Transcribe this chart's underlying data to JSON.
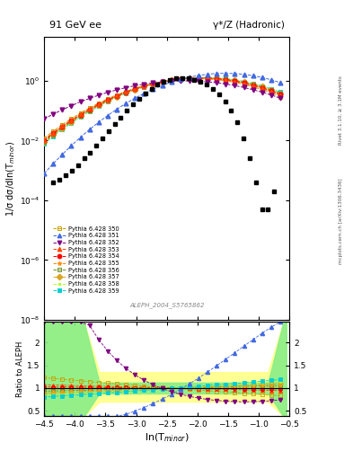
{
  "title_left": "91 GeV ee",
  "title_right": "γ*/Z (Hadronic)",
  "ylabel_main": "1/σ dσ/dln(T$_{minor}$)",
  "ylabel_ratio": "Ratio to ALEPH",
  "xlabel": "ln(T$_{minor}$)",
  "right_label_top": "Rivet 3.1.10, ≥ 3.1M events",
  "right_label_bottom": "mcplots.cern.ch [arXiv:1306.3436]",
  "ref_label": "ALEPH_2004_S5765862",
  "xlim": [
    -4.5,
    -0.5
  ],
  "ylim_main": [
    1e-08,
    30
  ],
  "ylim_ratio": [
    0.38,
    2.45
  ],
  "legend_entries": [
    "Pythia 6.428 350",
    "Pythia 6.428 351",
    "Pythia 6.428 352",
    "Pythia 6.428 353",
    "Pythia 6.428 354",
    "Pythia 6.428 355",
    "Pythia 6.428 356",
    "Pythia 6.428 357",
    "Pythia 6.428 358",
    "Pythia 6.428 359"
  ],
  "mc_colors": [
    "#c8a000",
    "#4169e1",
    "#800080",
    "#ff4500",
    "#ff0000",
    "#ff8c00",
    "#6b8e23",
    "#daa520",
    "#adff2f",
    "#00ced1"
  ],
  "mc_markers": [
    "s",
    "^",
    "v",
    "^",
    "o",
    "*",
    "s",
    "D",
    ".",
    "s"
  ],
  "ref_x": [
    -4.35,
    -4.25,
    -4.15,
    -4.05,
    -3.95,
    -3.85,
    -3.75,
    -3.65,
    -3.55,
    -3.45,
    -3.35,
    -3.25,
    -3.15,
    -3.05,
    -2.95,
    -2.85,
    -2.75,
    -2.65,
    -2.55,
    -2.45,
    -2.35,
    -2.25,
    -2.15,
    -2.05,
    -1.95,
    -1.85,
    -1.75,
    -1.65,
    -1.55,
    -1.45,
    -1.35,
    -1.25,
    -1.15,
    -1.05,
    -0.95,
    -0.85,
    -0.75
  ],
  "ref_y": [
    0.0004,
    0.0005,
    0.0007,
    0.001,
    0.0015,
    0.0025,
    0.004,
    0.007,
    0.012,
    0.02,
    0.035,
    0.06,
    0.1,
    0.16,
    0.25,
    0.38,
    0.55,
    0.75,
    0.95,
    1.1,
    1.2,
    1.25,
    1.2,
    1.1,
    0.95,
    0.75,
    0.55,
    0.35,
    0.2,
    0.1,
    0.04,
    0.012,
    0.0025,
    0.0004,
    5e-05,
    5e-05,
    0.0002
  ]
}
